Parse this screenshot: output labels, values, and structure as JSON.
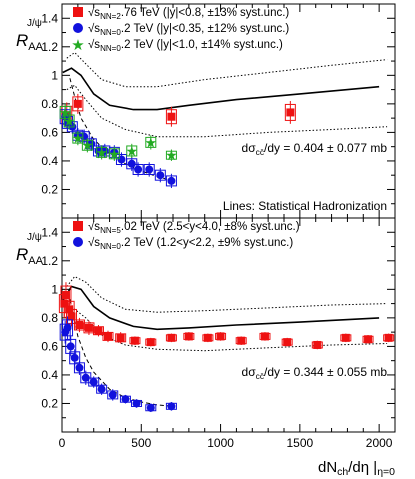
{
  "chart_data": [
    {
      "type": "scatter",
      "panel": "top",
      "ylabel": "R",
      "ylabel_sub": "AA",
      "ylabel_sup": "J/ψ",
      "xlim": [
        0,
        2100
      ],
      "ylim": [
        0,
        1.5
      ],
      "yticks": [
        "0.2",
        "0.4",
        "0.6",
        "0.8",
        "1",
        "1.2",
        "1.4"
      ],
      "legend": [
        {
          "symbol": "square",
          "color": "#ee1111",
          "text": "√s_NN=2.76 TeV (|y|<0.8, ±13% syst.unc.)"
        },
        {
          "symbol": "circle",
          "color": "#1111dd",
          "text": "√s_NN=0.2 TeV (|y|<0.35, ±12% syst.unc.)"
        },
        {
          "symbol": "star",
          "color": "#22aa22",
          "text": "√s_NN=0.2 TeV (|y|<1.0, ±14% syst.unc.)"
        }
      ],
      "annotations": [
        "dσ_cc̄/dy = 0.404 ± 0.077 mb",
        "Lines: Statistical Hadronization"
      ],
      "series": [
        {
          "name": "2.76 TeV (|y|<0.8)",
          "marker": "square",
          "color": "#ee1111",
          "points": [
            {
              "x": 30,
              "y": 0.72,
              "err": 0.09
            },
            {
              "x": 100,
              "y": 0.8,
              "err": 0.07
            },
            {
              "x": 690,
              "y": 0.71,
              "err": 0.07
            },
            {
              "x": 1440,
              "y": 0.74,
              "err": 0.08
            }
          ]
        },
        {
          "name": "0.2 TeV (|y|<0.35)",
          "marker": "circle",
          "color": "#1111dd",
          "points": [
            {
              "x": 20,
              "y": 0.71,
              "err": 0.07
            },
            {
              "x": 35,
              "y": 0.67,
              "err": 0.06
            },
            {
              "x": 65,
              "y": 0.64,
              "err": 0.05
            },
            {
              "x": 100,
              "y": 0.58,
              "err": 0.05
            },
            {
              "x": 140,
              "y": 0.57,
              "err": 0.05
            },
            {
              "x": 185,
              "y": 0.52,
              "err": 0.05
            },
            {
              "x": 230,
              "y": 0.47,
              "err": 0.05
            },
            {
              "x": 270,
              "y": 0.47,
              "err": 0.05
            },
            {
              "x": 330,
              "y": 0.46,
              "err": 0.05
            },
            {
              "x": 375,
              "y": 0.41,
              "err": 0.05
            },
            {
              "x": 440,
              "y": 0.38,
              "err": 0.05
            },
            {
              "x": 480,
              "y": 0.34,
              "err": 0.05
            },
            {
              "x": 550,
              "y": 0.34,
              "err": 0.05
            },
            {
              "x": 620,
              "y": 0.3,
              "err": 0.05
            },
            {
              "x": 690,
              "y": 0.26,
              "err": 0.05
            }
          ]
        },
        {
          "name": "0.2 TeV (|y|<1.0)",
          "marker": "star",
          "color": "#22aa22",
          "points": [
            {
              "x": 20,
              "y": 0.74,
              "err": 0.06
            },
            {
              "x": 45,
              "y": 0.68,
              "err": 0.06
            },
            {
              "x": 100,
              "y": 0.56,
              "err": 0.05
            },
            {
              "x": 160,
              "y": 0.51,
              "err": 0.05
            },
            {
              "x": 250,
              "y": 0.46,
              "err": 0.05
            },
            {
              "x": 330,
              "y": 0.45,
              "err": 0.05
            },
            {
              "x": 440,
              "y": 0.47,
              "err": 0.05
            },
            {
              "x": 560,
              "y": 0.53,
              "err": 0.05
            },
            {
              "x": 690,
              "y": 0.44,
              "err": 0.04
            }
          ]
        }
      ],
      "model": {
        "central": [
          [
            5,
            1.02
          ],
          [
            60,
            1.05
          ],
          [
            120,
            1.0
          ],
          [
            200,
            0.87
          ],
          [
            300,
            0.79
          ],
          [
            450,
            0.76
          ],
          [
            600,
            0.76
          ],
          [
            800,
            0.79
          ],
          [
            1100,
            0.83
          ],
          [
            1500,
            0.87
          ],
          [
            2000,
            0.92
          ]
        ],
        "upper": [
          [
            30,
            1.12
          ],
          [
            80,
            1.16
          ],
          [
            150,
            1.08
          ],
          [
            250,
            0.97
          ],
          [
            400,
            0.92
          ],
          [
            600,
            0.92
          ],
          [
            900,
            0.97
          ],
          [
            1300,
            1.02
          ],
          [
            1700,
            1.07
          ],
          [
            2050,
            1.11
          ]
        ],
        "lower": [
          [
            30,
            0.9
          ],
          [
            80,
            0.93
          ],
          [
            150,
            0.83
          ],
          [
            250,
            0.7
          ],
          [
            400,
            0.62
          ],
          [
            600,
            0.57
          ],
          [
            900,
            0.57
          ],
          [
            1300,
            0.6
          ],
          [
            1700,
            0.62
          ],
          [
            2050,
            0.64
          ]
        ],
        "rhic": [
          [
            50,
            0.98
          ],
          [
            80,
            0.85
          ],
          [
            120,
            0.7
          ],
          [
            200,
            0.55
          ],
          [
            300,
            0.45
          ],
          [
            400,
            0.38
          ],
          [
            500,
            0.33
          ],
          [
            600,
            0.29
          ],
          [
            700,
            0.26
          ]
        ]
      }
    },
    {
      "type": "scatter",
      "panel": "bottom",
      "ylabel": "R",
      "ylabel_sub": "AA",
      "ylabel_sup": "J/ψ",
      "xlabel": "dN_ch/dη |_η=0",
      "xlim": [
        0,
        2100
      ],
      "ylim": [
        0,
        1.5
      ],
      "xticks": [
        "0",
        "500",
        "1000",
        "1500",
        "2000"
      ],
      "yticks": [
        "0.2",
        "0.4",
        "0.6",
        "0.8",
        "1",
        "1.2",
        "1.4"
      ],
      "legend": [
        {
          "symbol": "square",
          "color": "#ee1111",
          "text": "√s_NN=5.02 TeV (2.5<y<4.0, ±8% syst.unc.)"
        },
        {
          "symbol": "circle",
          "color": "#1111dd",
          "text": "√s_NN=0.2 TeV (1.2<y<2.2, ±9% syst.unc.)"
        }
      ],
      "annotations": [
        "dσ_cc̄/dy = 0.344 ± 0.055 mb"
      ],
      "series": [
        {
          "name": "5.02 TeV (2.5<y<4.0)",
          "marker": "square",
          "color": "#ee1111",
          "points": [
            {
              "x": 15,
              "y": 0.9,
              "err": 0.09
            },
            {
              "x": 25,
              "y": 0.96,
              "err": 0.09
            },
            {
              "x": 45,
              "y": 0.86,
              "err": 0.08
            },
            {
              "x": 60,
              "y": 0.81,
              "err": 0.07
            },
            {
              "x": 110,
              "y": 0.75,
              "err": 0.05
            },
            {
              "x": 170,
              "y": 0.73,
              "err": 0.05
            },
            {
              "x": 230,
              "y": 0.71,
              "err": 0.04
            },
            {
              "x": 290,
              "y": 0.67,
              "err": 0.04
            },
            {
              "x": 370,
              "y": 0.66,
              "err": 0.04
            },
            {
              "x": 460,
              "y": 0.64,
              "err": 0.03
            },
            {
              "x": 560,
              "y": 0.63,
              "err": 0.03
            },
            {
              "x": 690,
              "y": 0.66,
              "err": 0.03
            },
            {
              "x": 800,
              "y": 0.67,
              "err": 0.03
            },
            {
              "x": 920,
              "y": 0.66,
              "err": 0.03
            },
            {
              "x": 1000,
              "y": 0.67,
              "err": 0.03
            },
            {
              "x": 1130,
              "y": 0.64,
              "err": 0.03
            },
            {
              "x": 1280,
              "y": 0.67,
              "err": 0.03
            },
            {
              "x": 1420,
              "y": 0.63,
              "err": 0.03
            },
            {
              "x": 1610,
              "y": 0.61,
              "err": 0.03
            },
            {
              "x": 1790,
              "y": 0.66,
              "err": 0.03
            },
            {
              "x": 1930,
              "y": 0.65,
              "err": 0.03
            },
            {
              "x": 2060,
              "y": 0.66,
              "err": 0.03
            }
          ]
        },
        {
          "name": "0.2 TeV (1.2<y<2.2)",
          "marker": "circle",
          "color": "#1111dd",
          "points": [
            {
              "x": 20,
              "y": 0.7,
              "err": 0.08
            },
            {
              "x": 35,
              "y": 0.73,
              "err": 0.08
            },
            {
              "x": 55,
              "y": 0.6,
              "err": 0.07
            },
            {
              "x": 80,
              "y": 0.52,
              "err": 0.06
            },
            {
              "x": 110,
              "y": 0.45,
              "err": 0.05
            },
            {
              "x": 150,
              "y": 0.38,
              "err": 0.05
            },
            {
              "x": 200,
              "y": 0.35,
              "err": 0.04
            },
            {
              "x": 250,
              "y": 0.3,
              "err": 0.04
            },
            {
              "x": 320,
              "y": 0.26,
              "err": 0.04
            },
            {
              "x": 400,
              "y": 0.23,
              "err": 0.03
            },
            {
              "x": 470,
              "y": 0.2,
              "err": 0.03
            },
            {
              "x": 560,
              "y": 0.17,
              "err": 0.03
            },
            {
              "x": 690,
              "y": 0.18,
              "err": 0.03
            }
          ]
        }
      ],
      "model": {
        "central": [
          [
            5,
            0.92
          ],
          [
            60,
            1.02
          ],
          [
            120,
            1.0
          ],
          [
            200,
            0.88
          ],
          [
            300,
            0.8
          ],
          [
            450,
            0.74
          ],
          [
            600,
            0.72
          ],
          [
            800,
            0.73
          ],
          [
            1100,
            0.75
          ],
          [
            1500,
            0.77
          ],
          [
            2000,
            0.8
          ]
        ],
        "upper": [
          [
            30,
            1.02
          ],
          [
            80,
            1.09
          ],
          [
            150,
            1.05
          ],
          [
            250,
            0.94
          ],
          [
            400,
            0.86
          ],
          [
            600,
            0.84
          ],
          [
            900,
            0.85
          ],
          [
            1300,
            0.87
          ],
          [
            1700,
            0.89
          ],
          [
            2050,
            0.9
          ]
        ],
        "lower": [
          [
            30,
            0.77
          ],
          [
            80,
            0.86
          ],
          [
            150,
            0.8
          ],
          [
            250,
            0.68
          ],
          [
            400,
            0.61
          ],
          [
            600,
            0.58
          ],
          [
            900,
            0.57
          ],
          [
            1300,
            0.59
          ],
          [
            1700,
            0.61
          ],
          [
            2050,
            0.62
          ]
        ],
        "rhic": [
          [
            40,
            0.98
          ],
          [
            70,
            0.82
          ],
          [
            100,
            0.67
          ],
          [
            150,
            0.52
          ],
          [
            200,
            0.42
          ],
          [
            300,
            0.3
          ],
          [
            400,
            0.24
          ],
          [
            500,
            0.21
          ],
          [
            600,
            0.19
          ],
          [
            700,
            0.18
          ]
        ]
      }
    }
  ]
}
